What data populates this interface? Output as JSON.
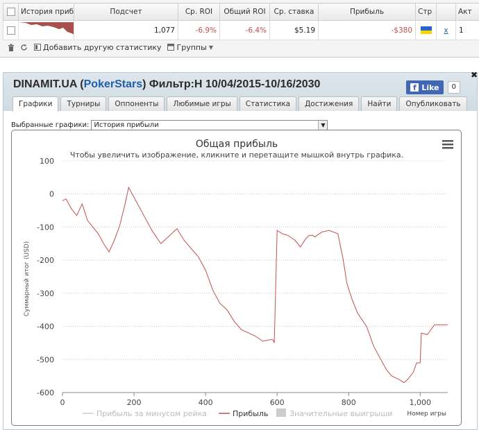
{
  "stats_table": {
    "headers": [
      "",
      "История приб",
      "Подсчет",
      "Ср. ROI",
      "Общий ROI",
      "Ср. ставка",
      "Прибыль",
      "Стр",
      "",
      "Акт"
    ],
    "row": {
      "count": "1,077",
      "avg_roi": "-6.9%",
      "total_roi": "-6.4%",
      "avg_stake": "$5.19",
      "profit": "-$380",
      "flag_colors": [
        "#2a63c6",
        "#f5d400"
      ],
      "remove_icon": "x",
      "act": "1"
    }
  },
  "toolbar": {
    "add_stats": "Добавить другую статистику",
    "groups": "Группы"
  },
  "card": {
    "player": "DINAMIT.UA",
    "site": "PokerStars",
    "filter": "Фильтр:H 10/04/2015-10/16/2030",
    "like_label": "Like",
    "like_count": "0",
    "tabs": [
      "Графики",
      "Турниры",
      "Оппоненты",
      "Любимые игры",
      "Статистика",
      "Достижения",
      "Найти",
      "Опубликовать"
    ],
    "select_label": "Выбранные графики:",
    "select_value": "История прибыли"
  },
  "chart_data": {
    "type": "line",
    "title": "Общая прибыль",
    "subtitle": "Чтобы увеличить изображение, кликните и перетащите мышкой внутрь графика.",
    "xlabel": "Номер игры",
    "ylabel": "Суммарный итог (USD)",
    "xlim": [
      0,
      1077
    ],
    "ylim": [
      -600,
      100
    ],
    "xticks": [
      "0",
      "200",
      "400",
      "600",
      "800",
      "1,000"
    ],
    "yticks": [
      "100",
      "0",
      "-100",
      "-200",
      "-300",
      "-400",
      "-500",
      "-600"
    ],
    "legend": [
      "Прибыль за минусом рейка",
      "Прибыль",
      "Значительные выигрыши"
    ],
    "series": [
      {
        "name": "Прибыль",
        "color": "#c0504d",
        "x": [
          0,
          10,
          25,
          40,
          55,
          70,
          85,
          100,
          115,
          130,
          145,
          160,
          175,
          185,
          195,
          210,
          225,
          250,
          275,
          300,
          320,
          340,
          360,
          380,
          400,
          420,
          440,
          460,
          480,
          500,
          520,
          540,
          560,
          580,
          588,
          592,
          600,
          615,
          630,
          650,
          665,
          680,
          690,
          700,
          705,
          725,
          745,
          770,
          785,
          795,
          810,
          825,
          850,
          870,
          890,
          905,
          920,
          940,
          955,
          965,
          980,
          990,
          1000,
          1003,
          1020,
          1040,
          1060,
          1077
        ],
        "values": [
          -20,
          -15,
          -45,
          -65,
          -30,
          -80,
          -100,
          -120,
          -150,
          -175,
          -140,
          -95,
          -30,
          20,
          0,
          -30,
          -60,
          -110,
          -150,
          -125,
          -105,
          -140,
          -165,
          -190,
          -230,
          -290,
          -330,
          -350,
          -385,
          -410,
          -420,
          -430,
          -445,
          -440,
          -440,
          -450,
          -110,
          -120,
          -125,
          -140,
          -160,
          -135,
          -125,
          -125,
          -130,
          -115,
          -110,
          -120,
          -200,
          -270,
          -320,
          -360,
          -400,
          -460,
          -500,
          -530,
          -550,
          -560,
          -570,
          -560,
          -540,
          -510,
          -510,
          -420,
          -425,
          -395,
          -395,
          -395
        ]
      }
    ]
  }
}
